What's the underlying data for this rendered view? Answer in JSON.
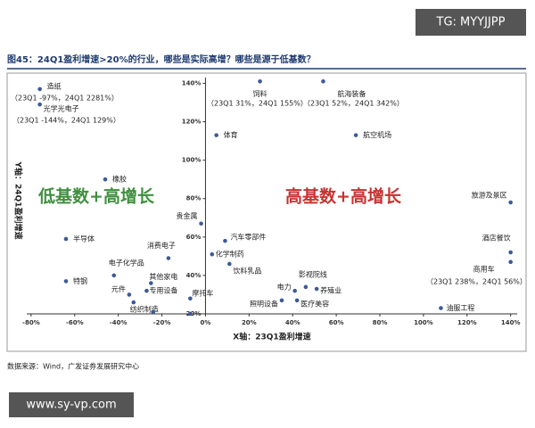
{
  "chart_data": {
    "type": "scatter",
    "title": "图45：24Q1盈利增速>20%的行业，哪些是实际高增？哪些是源于低基数？",
    "x_label": "X轴：23Q1盈利增速",
    "y_label": "Y轴：24Q1盈利增速",
    "color": "#3d5a98",
    "x": [
      -76,
      -76,
      25,
      54,
      5,
      69,
      -46,
      140,
      140,
      140,
      -64,
      -2,
      9,
      -17,
      3,
      11,
      -42,
      -64,
      -25,
      -35,
      -27,
      -33,
      -7,
      41,
      46,
      51,
      35,
      42,
      108,
      -24,
      -7
    ],
    "values": [
      137,
      129,
      141,
      141,
      113,
      113,
      90,
      78,
      52,
      47,
      59,
      67,
      58,
      49,
      51,
      46,
      40,
      37,
      36,
      30,
      32,
      26,
      28,
      32,
      34,
      33,
      27,
      27,
      23,
      21,
      20
    ],
    "point_labels": [
      "造纸",
      "光学光电子",
      "饲料",
      "航海装备",
      "体育",
      "航空机场",
      "橡胶",
      "旅游及景区",
      "酒店餐饮",
      "商用车",
      "半导体",
      "贵金属",
      "汽车零部件",
      "消费电子",
      "化学制药",
      "饮料乳品",
      "电子化学品",
      "特钢",
      "其他家电",
      "元件",
      "专用设备",
      "纺织制造",
      "摩托车",
      "电力",
      "影视院线",
      "养殖业",
      "照明设备",
      "医疗美容",
      "油服工程",
      null,
      null
    ],
    "xlim": [
      -82,
      143
    ],
    "ylim": [
      20,
      143
    ],
    "xticks": [
      {
        "value": -80,
        "label": "-80%"
      },
      {
        "value": -60,
        "label": "-60%"
      },
      {
        "value": -40,
        "label": "-40%"
      },
      {
        "value": -20,
        "label": "-20%"
      },
      {
        "value": 0,
        "label": "0%"
      },
      {
        "value": 20,
        "label": "20%"
      },
      {
        "value": 40,
        "label": "40%"
      },
      {
        "value": 60,
        "label": "60%"
      },
      {
        "value": 80,
        "label": "80%"
      },
      {
        "value": 100,
        "label": "100%"
      },
      {
        "value": 120,
        "label": "120%"
      },
      {
        "value": 140,
        "label": "140%"
      }
    ],
    "yticks": [
      {
        "value": 20,
        "label": "20%"
      },
      {
        "value": 40,
        "label": "40%"
      },
      {
        "value": 60,
        "label": "60%"
      },
      {
        "value": 80,
        "label": "80%"
      },
      {
        "value": 100,
        "label": "100%"
      },
      {
        "value": 120,
        "label": "120%"
      },
      {
        "value": 140,
        "label": "140%"
      }
    ],
    "annotations": [
      "（23Q1 -97%，24Q1 2281%）",
      "（23Q1 -144%，24Q1 129%）",
      "（23Q1 31%，24Q1 155%）",
      "（23Q1 52%，24Q1 342%）",
      "（23Q1 238%，24Q1 56%）"
    ],
    "quadrant_labels": [
      "低基数+高增长",
      "高基数+高增长"
    ],
    "source": "数据来源：Wind，广发证券发展研究中心",
    "watermarks": [
      "TG: MYYJJPP",
      "www.sy-vp.com"
    ]
  }
}
